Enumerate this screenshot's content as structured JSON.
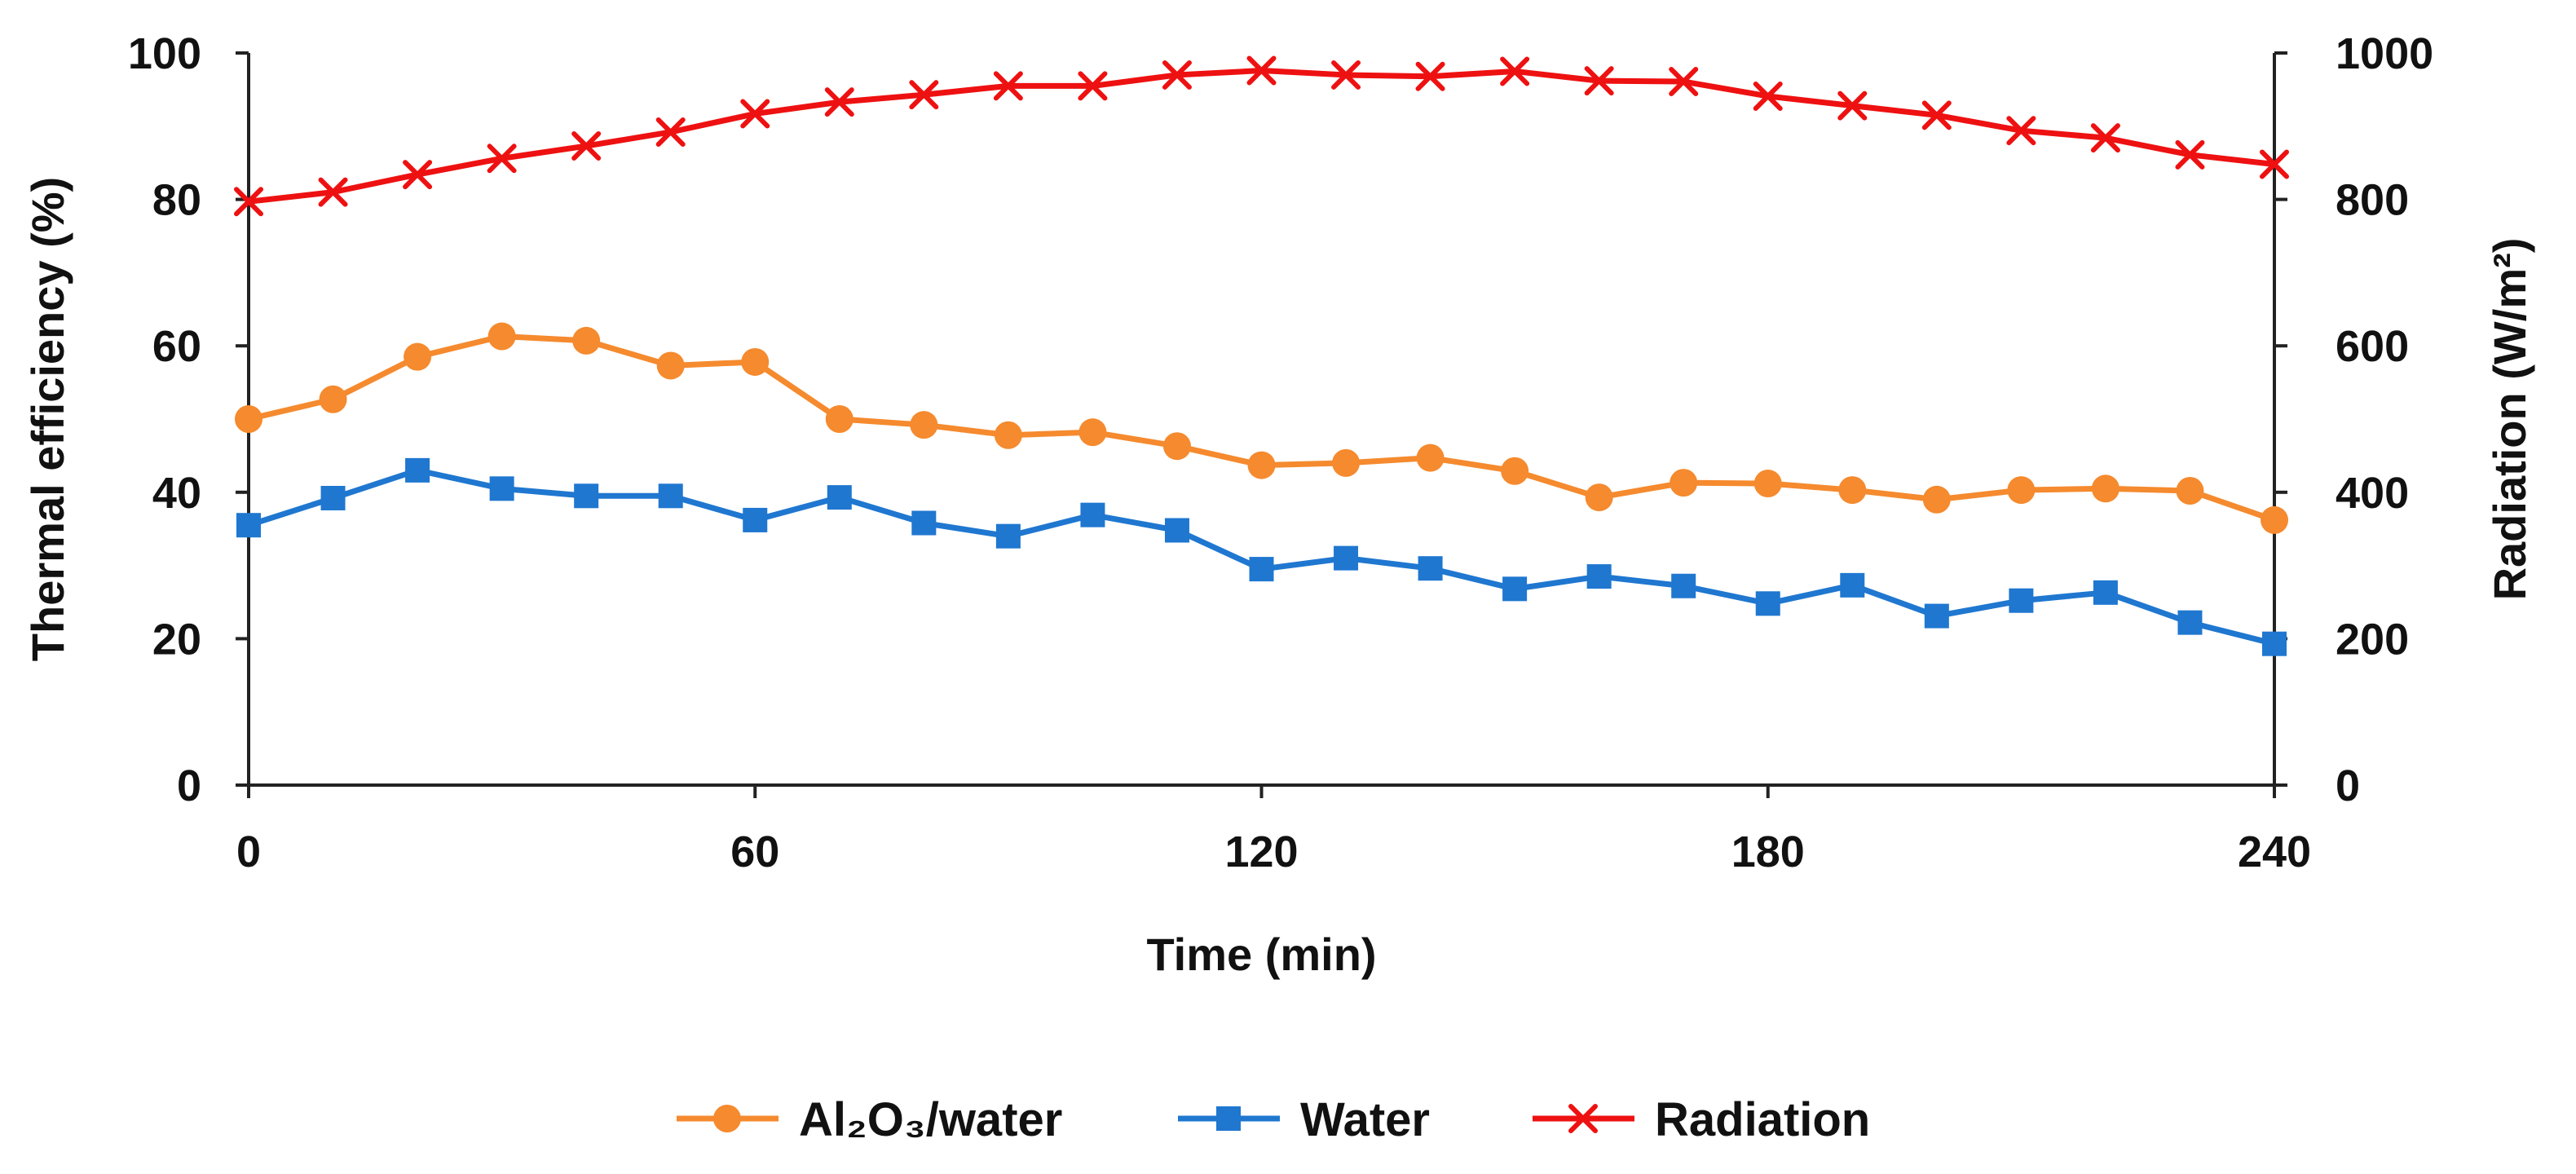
{
  "chart_data": {
    "type": "line",
    "x": [
      0,
      10,
      20,
      30,
      40,
      50,
      60,
      70,
      80,
      90,
      100,
      110,
      120,
      130,
      140,
      150,
      160,
      170,
      180,
      190,
      200,
      210,
      220,
      230,
      240
    ],
    "series": [
      {
        "name": "Al₂O₃/water",
        "axis": "left",
        "marker": "circle",
        "color": "#F58A2E",
        "values": [
          50,
          52.7,
          58.5,
          61.3,
          60.7,
          57.3,
          57.8,
          50,
          49.2,
          47.8,
          48.2,
          46.3,
          43.7,
          44,
          44.7,
          42.9,
          39.3,
          41.3,
          41.2,
          40.3,
          39,
          40.3,
          40.5,
          40.2,
          36.2
        ]
      },
      {
        "name": "Water",
        "axis": "left",
        "marker": "square",
        "color": "#1F77D0",
        "values": [
          35.5,
          39.2,
          43,
          40.5,
          39.5,
          39.5,
          36.2,
          39.3,
          35.8,
          34,
          36.9,
          34.8,
          29.5,
          31,
          29.6,
          26.8,
          28.5,
          27.2,
          24.8,
          27.3,
          23.1,
          25.2,
          26.3,
          22.2,
          19.3
        ]
      },
      {
        "name": "Radiation",
        "axis": "right",
        "marker": "x",
        "color": "#EE1111",
        "values": [
          797,
          810,
          834,
          856,
          873,
          892,
          917,
          933,
          943,
          955,
          955,
          970,
          976,
          970,
          968,
          975,
          962,
          961,
          941,
          928,
          915,
          894,
          884,
          861,
          848
        ]
      }
    ],
    "title": "",
    "xlabel": "Time (min)",
    "ylabel": "Thermal efficiency (%)",
    "y2label": "Radiation (W/m²)",
    "xlim": [
      0,
      240
    ],
    "ylim": [
      0,
      100
    ],
    "y2lim": [
      0,
      1000
    ],
    "xticks": [
      0,
      60,
      120,
      180,
      240
    ],
    "yticks": [
      0,
      20,
      40,
      60,
      80,
      100
    ],
    "y2ticks": [
      0,
      200,
      400,
      600,
      800,
      1000
    ],
    "grid": false,
    "legend_position": "bottom"
  }
}
